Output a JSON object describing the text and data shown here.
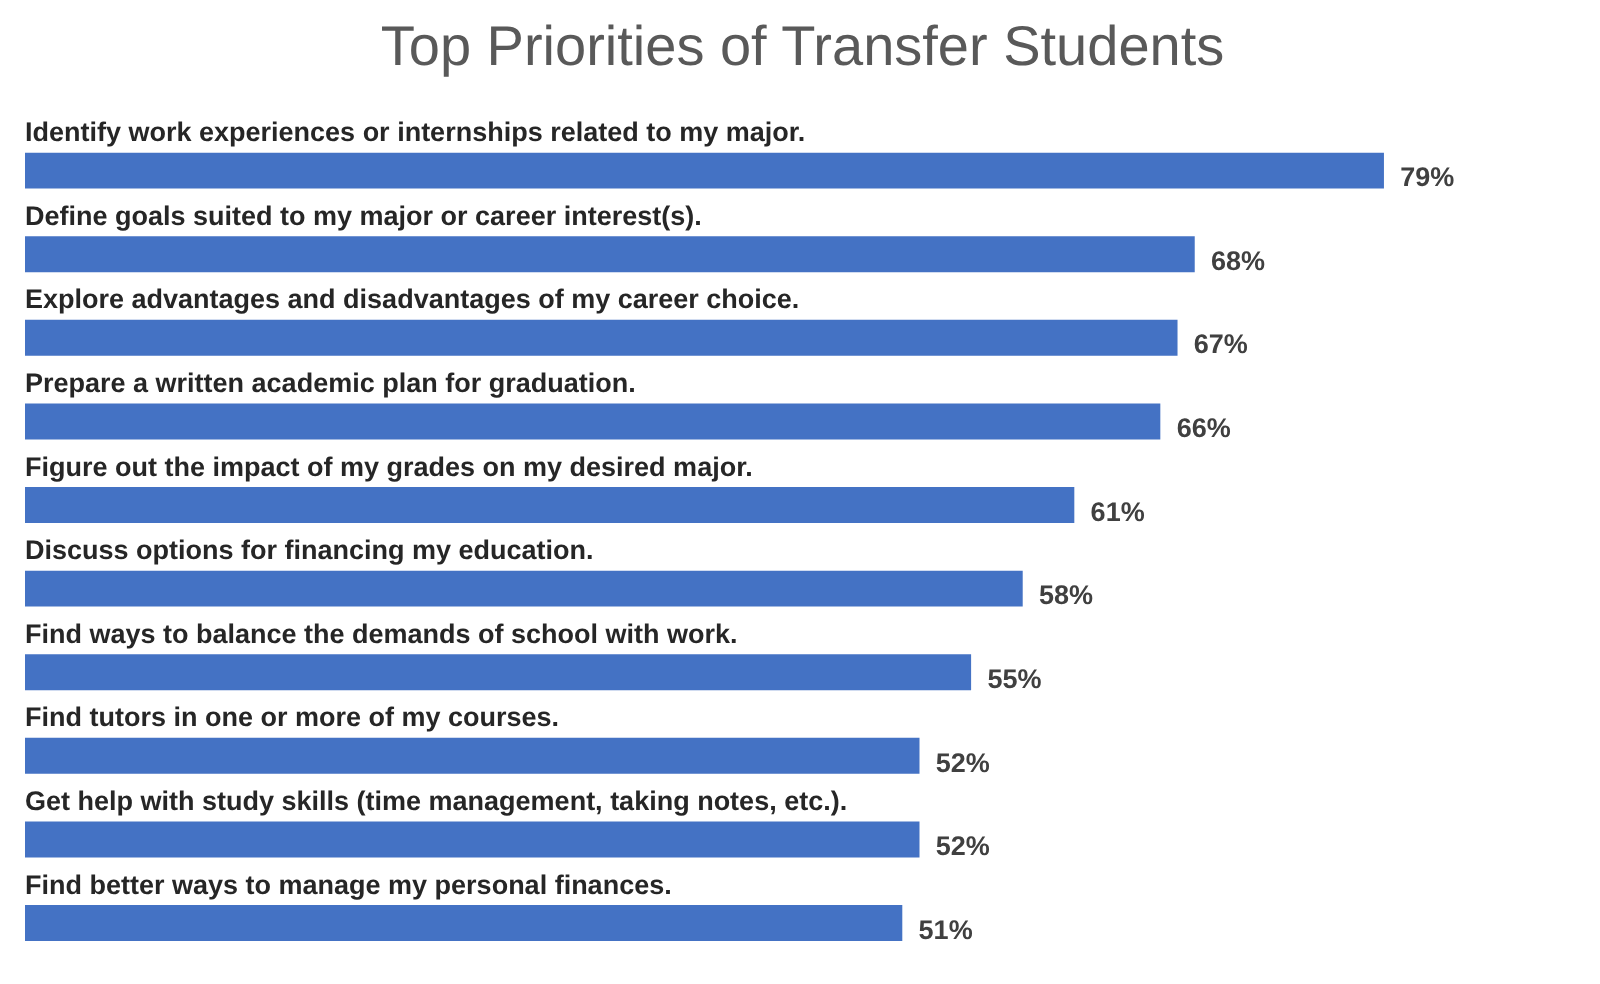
{
  "chart_data": {
    "type": "bar",
    "orientation": "horizontal",
    "data_labels": true,
    "title": "Top Priorities of Transfer Students",
    "categories": [
      "Identify work experiences or internships related to my major.",
      "Define goals suited to my major or career interest(s).",
      "Explore advantages and disadvantages of my career choice.",
      "Prepare a written academic plan for graduation.",
      "Figure out the impact of my grades on my desired major.",
      "Discuss options for financing my education.",
      "Find ways to balance the demands of school with work.",
      "Find tutors in one or more of my courses.",
      "Get help with study skills (time management, taking notes, etc.).",
      "Find better ways to manage my personal finances."
    ],
    "values": [
      79,
      68,
      67,
      66,
      61,
      58,
      55,
      52,
      52,
      51
    ],
    "value_labels": [
      "79%",
      "68%",
      "67%",
      "66%",
      "61%",
      "58%",
      "55%",
      "52%",
      "52%",
      "51%"
    ],
    "color": "#4472c4",
    "grid": false
  }
}
